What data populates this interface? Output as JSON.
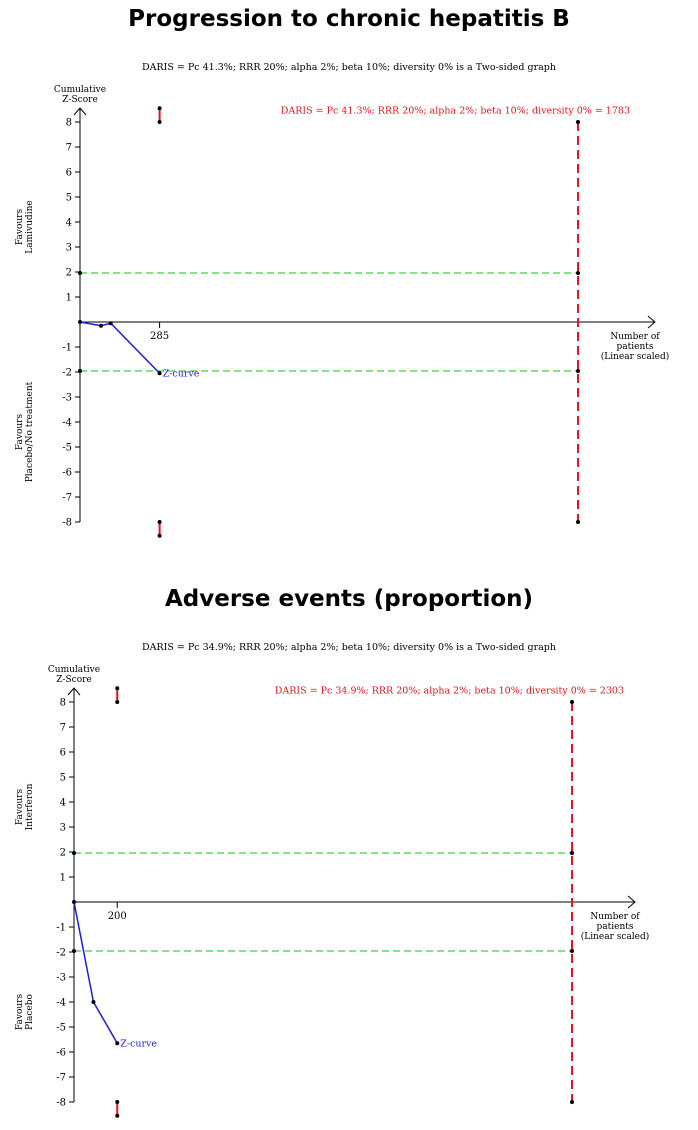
{
  "chart_data": [
    {
      "type": "line",
      "title": "Progression to chronic hepatitis B",
      "subtitle": "DARIS = Pc 41.3%; RRR 20%; alpha 2%; beta 10%; diversity 0% is a Two-sided graph",
      "ylabel_lines": [
        "Cumulative",
        "Z-Score"
      ],
      "xlabel_lines": [
        "Number of",
        "patients",
        "(Linear scaled)"
      ],
      "upper_favours_lines": [
        "Favours",
        "Lamivudine"
      ],
      "lower_favours_lines": [
        "Favours",
        "Placebo/No treatment"
      ],
      "y_ticks": [
        8,
        7,
        6,
        5,
        4,
        3,
        2,
        1,
        -1,
        -2,
        -3,
        -4,
        -5,
        -6,
        -7,
        -8
      ],
      "ylim": [
        -8,
        8
      ],
      "xlim": [
        0,
        1860
      ],
      "x_tick_values": [
        285
      ],
      "x_tick_labels": [
        "285"
      ],
      "daris": {
        "label": "DARIS = Pc 41.3%; RRR 20%; alpha 2%; beta 10%; diversity 0% = 1783",
        "value": 1783
      },
      "series": [
        {
          "name": "Z-curve",
          "x": [
            0,
            75,
            110,
            285
          ],
          "y": [
            0,
            -0.15,
            -0.05,
            -2.05
          ]
        }
      ],
      "conventional_boundaries": [
        1.96,
        -1.96
      ],
      "truncation_marker_x": 285
    },
    {
      "type": "line",
      "title": "Adverse events (proportion)",
      "subtitle": "DARIS = Pc 34.9%; RRR 20%; alpha 2%; beta 10%; diversity 0% is a Two-sided graph",
      "ylabel_lines": [
        "Cumulative",
        "Z-Score"
      ],
      "xlabel_lines": [
        "Number of",
        "patients",
        "(Linear scaled)"
      ],
      "upper_favours_lines": [
        "Favours",
        "Interferon"
      ],
      "lower_favours_lines": [
        "Favours",
        "Placebo"
      ],
      "y_ticks": [
        8,
        7,
        6,
        5,
        4,
        3,
        2,
        1,
        -1,
        -2,
        -3,
        -4,
        -5,
        -6,
        -7,
        -8
      ],
      "ylim": [
        -8,
        8
      ],
      "xlim": [
        0,
        2400
      ],
      "x_tick_values": [
        200
      ],
      "x_tick_labels": [
        "200"
      ],
      "daris": {
        "label": "DARIS = Pc 34.9%; RRR 20%; alpha 2%; beta 10%; diversity 0% = 2303",
        "value": 2303
      },
      "series": [
        {
          "name": "Z-curve",
          "x": [
            0,
            90,
            200
          ],
          "y": [
            0,
            -4,
            -5.65
          ]
        }
      ],
      "conventional_boundaries": [
        1.96,
        -1.96
      ],
      "truncation_marker_x": 200
    }
  ]
}
